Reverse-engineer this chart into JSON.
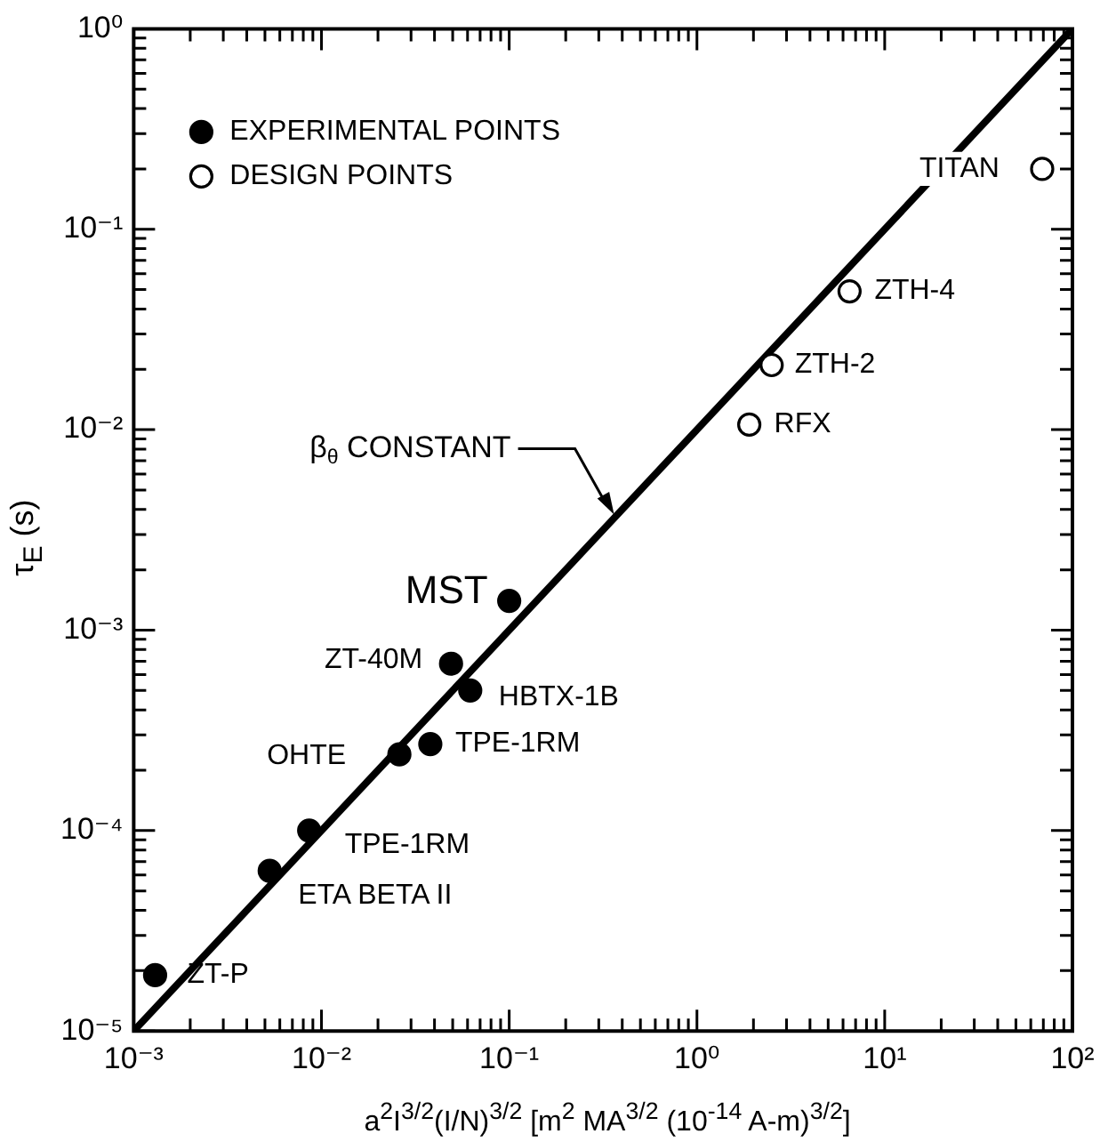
{
  "chart_data": {
    "type": "scatter",
    "xlabel": "a$^{2}$I$^{3/2}$(I/N)$^{3/2}$ [m$^{2}$ MA$^{3/2}$ (10$^{-14}$ A-m)$^{3/2}$]",
    "ylabel": "τ$_{E}$ (s)",
    "log": "xy",
    "xlim": [
      0.001,
      100
    ],
    "ylim": [
      1e-05,
      1
    ],
    "xticks": [
      {
        "value": 0.001,
        "label": "10⁻³"
      },
      {
        "value": 0.002,
        "label": null
      },
      {
        "value": 0.003,
        "label": null
      },
      {
        "value": 0.004,
        "label": null
      },
      {
        "value": 0.005,
        "label": null
      },
      {
        "value": 0.006,
        "label": null
      },
      {
        "value": 0.007,
        "label": null
      },
      {
        "value": 0.008,
        "label": null
      },
      {
        "value": 0.009,
        "label": null
      },
      {
        "value": 0.01,
        "label": "10⁻²"
      },
      {
        "value": 0.02,
        "label": null
      },
      {
        "value": 0.03,
        "label": null
      },
      {
        "value": 0.04,
        "label": null
      },
      {
        "value": 0.05,
        "label": null
      },
      {
        "value": 0.06,
        "label": null
      },
      {
        "value": 0.07,
        "label": null
      },
      {
        "value": 0.08,
        "label": null
      },
      {
        "value": 0.09,
        "label": null
      },
      {
        "value": 0.1,
        "label": "10⁻¹"
      },
      {
        "value": 0.2,
        "label": null
      },
      {
        "value": 0.3,
        "label": null
      },
      {
        "value": 0.4,
        "label": null
      },
      {
        "value": 0.5,
        "label": null
      },
      {
        "value": 0.6,
        "label": null
      },
      {
        "value": 0.7,
        "label": null
      },
      {
        "value": 0.8,
        "label": null
      },
      {
        "value": 0.9,
        "label": null
      },
      {
        "value": 1,
        "label": "10⁰"
      },
      {
        "value": 2,
        "label": null
      },
      {
        "value": 3,
        "label": null
      },
      {
        "value": 4,
        "label": null
      },
      {
        "value": 5,
        "label": null
      },
      {
        "value": 6,
        "label": null
      },
      {
        "value": 7,
        "label": null
      },
      {
        "value": 8,
        "label": null
      },
      {
        "value": 9,
        "label": null
      },
      {
        "value": 10,
        "label": "10¹"
      },
      {
        "value": 20,
        "label": null
      },
      {
        "value": 30,
        "label": null
      },
      {
        "value": 40,
        "label": null
      },
      {
        "value": 50,
        "label": null
      },
      {
        "value": 60,
        "label": null
      },
      {
        "value": 70,
        "label": null
      },
      {
        "value": 80,
        "label": null
      },
      {
        "value": 90,
        "label": null
      },
      {
        "value": 100,
        "label": "10²"
      }
    ],
    "yticks": [
      {
        "value": 1e-05,
        "label": "10⁻⁵"
      },
      {
        "value": 2e-05,
        "label": null
      },
      {
        "value": 3e-05,
        "label": null
      },
      {
        "value": 4e-05,
        "label": null
      },
      {
        "value": 5e-05,
        "label": null
      },
      {
        "value": 6e-05,
        "label": null
      },
      {
        "value": 7e-05,
        "label": null
      },
      {
        "value": 8e-05,
        "label": null
      },
      {
        "value": 9e-05,
        "label": null
      },
      {
        "value": 0.0001,
        "label": "10⁻⁴"
      },
      {
        "value": 0.0002,
        "label": null
      },
      {
        "value": 0.0003,
        "label": null
      },
      {
        "value": 0.0004,
        "label": null
      },
      {
        "value": 0.0005,
        "label": null
      },
      {
        "value": 0.0006,
        "label": null
      },
      {
        "value": 0.0007,
        "label": null
      },
      {
        "value": 0.0008,
        "label": null
      },
      {
        "value": 0.0009,
        "label": null
      },
      {
        "value": 0.001,
        "label": "10⁻³"
      },
      {
        "value": 0.002,
        "label": null
      },
      {
        "value": 0.003,
        "label": null
      },
      {
        "value": 0.004,
        "label": null
      },
      {
        "value": 0.005,
        "label": null
      },
      {
        "value": 0.006,
        "label": null
      },
      {
        "value": 0.007,
        "label": null
      },
      {
        "value": 0.008,
        "label": null
      },
      {
        "value": 0.009,
        "label": null
      },
      {
        "value": 0.01,
        "label": "10⁻²"
      },
      {
        "value": 0.02,
        "label": null
      },
      {
        "value": 0.03,
        "label": null
      },
      {
        "value": 0.04,
        "label": null
      },
      {
        "value": 0.05,
        "label": null
      },
      {
        "value": 0.06,
        "label": null
      },
      {
        "value": 0.07,
        "label": null
      },
      {
        "value": 0.08,
        "label": null
      },
      {
        "value": 0.09,
        "label": null
      },
      {
        "value": 0.1,
        "label": "10⁻¹"
      },
      {
        "value": 0.2,
        "label": null
      },
      {
        "value": 0.3,
        "label": null
      },
      {
        "value": 0.4,
        "label": null
      },
      {
        "value": 0.5,
        "label": null
      },
      {
        "value": 0.6,
        "label": null
      },
      {
        "value": 0.7,
        "label": null
      },
      {
        "value": 0.8,
        "label": null
      },
      {
        "value": 0.9,
        "label": null
      },
      {
        "value": 1,
        "label": "10⁰"
      }
    ],
    "grid": false,
    "legend": "top left",
    "series": [
      {
        "name": "EXPERIMENTAL POINTS",
        "marker": "circle",
        "color": "#000000",
        "x": [
          0.0013,
          0.0053,
          0.0086,
          0.026,
          0.038,
          0.049,
          0.062,
          0.1
        ],
        "values": [
          1.9e-05,
          6.3e-05,
          0.0001,
          0.00024,
          0.00027,
          0.00068,
          0.0005,
          0.0014
        ]
      },
      {
        "name": "DESIGN POINTS",
        "marker": "circle",
        "color": "#ffffff",
        "x": [
          69,
          6.5,
          2.5,
          1.9
        ],
        "values": [
          0.2,
          0.049,
          0.021,
          0.0106
        ]
      },
      {
        "type": "line",
        "marker": "none",
        "line_style": "solid",
        "color": "#000000",
        "x": [
          0.001,
          100
        ],
        "values": [
          1e-05,
          1
        ]
      }
    ],
    "annotations": [
      {
        "text": "ZT-P",
        "x": 0.0013,
        "y": 1.9e-05
      },
      {
        "text": "ETA BETA II",
        "x": 0.0053,
        "y": 6.3e-05
      },
      {
        "text": "TPE-1RM",
        "x": 0.0086,
        "y": 0.0001
      },
      {
        "text": "OHTE",
        "x": 0.026,
        "y": 0.00024
      },
      {
        "text": "TPE-1RM",
        "x": 0.038,
        "y": 0.00027
      },
      {
        "text": "ZT-40M",
        "x": 0.049,
        "y": 0.00068
      },
      {
        "text": "HBTX-1B",
        "x": 0.062,
        "y": 0.0005
      },
      {
        "text": "MST",
        "x": 0.1,
        "y": 0.0014
      },
      {
        "text": "TITAN",
        "x": 69,
        "y": 0.2
      },
      {
        "text": "ZTH-4",
        "x": 6.5,
        "y": 0.049
      },
      {
        "text": "ZTH-2",
        "x": 2.5,
        "y": 0.021
      },
      {
        "text": "RFX",
        "x": 1.9,
        "y": 0.0106
      },
      {
        "text": "β$_{θ}$ CONSTANT",
        "x": 0.37,
        "y": 0.0037
      }
    ]
  }
}
